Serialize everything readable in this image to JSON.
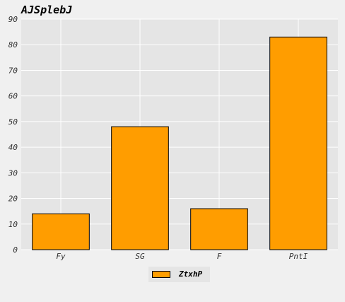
{
  "chart_data": {
    "type": "bar",
    "title": "AJSplebJ",
    "categories": [
      "Fy",
      "SG",
      "F",
      "PntI"
    ],
    "series": [
      {
        "name": "ZtxhP",
        "values": [
          14,
          48,
          16,
          83
        ],
        "color": "#ff9d00"
      }
    ],
    "xlabel": "",
    "ylabel": "",
    "ylim": [
      0,
      90
    ],
    "yticks": [
      0,
      10,
      20,
      30,
      40,
      50,
      60,
      70,
      80,
      90
    ],
    "grid": true,
    "legend_position": "bottom-center",
    "colors": {
      "plot_background": "#e5e5e5",
      "figure_background": "#f0f0f0",
      "grid": "#ffffff",
      "bar_edge": "#000000"
    }
  }
}
